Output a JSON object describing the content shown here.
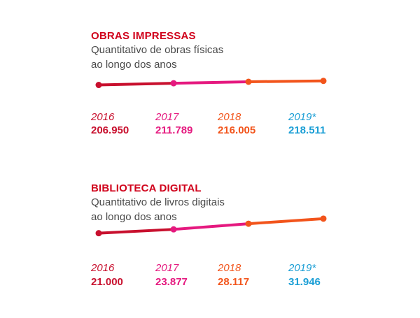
{
  "colors": {
    "title": "#d0021b",
    "subtitle": "#4a4a4a",
    "point": [
      "#c8102e",
      "#e5197f",
      "#f2541b",
      "#1a9ed5"
    ],
    "segment": [
      "#c8102e",
      "#e5197f",
      "#f2541b"
    ]
  },
  "chart_data": [
    {
      "type": "line",
      "title": "OBRAS IMPRESSAS",
      "subtitle": [
        "Quantitativo de obras físicas",
        "ao longo dos anos"
      ],
      "categories": [
        "2016",
        "2017",
        "2018",
        "2019*"
      ],
      "values": [
        206950,
        211789,
        216005,
        218511
      ],
      "labels": [
        "206.950",
        "211.789",
        "216.005",
        "218.511"
      ],
      "ylim": [
        150000,
        230000
      ]
    },
    {
      "type": "line",
      "title": "BIBLIOTECA DIGITAL",
      "subtitle": [
        "Quantitativo de livros digitais",
        "ao longo dos anos"
      ],
      "categories": [
        "2016",
        "2017",
        "2018",
        "2019*"
      ],
      "values": [
        21000,
        23877,
        28117,
        31946
      ],
      "labels": [
        "21.000",
        "23.877",
        "28.117",
        "31.946"
      ],
      "ylim": [
        14000,
        35000
      ]
    }
  ]
}
